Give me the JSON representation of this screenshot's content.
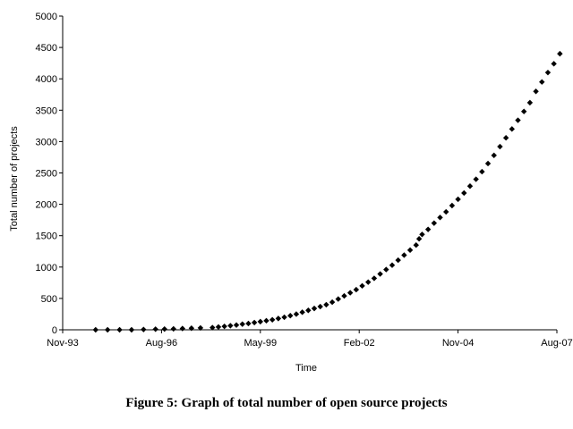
{
  "figure": {
    "caption": "Figure 5: Graph of total number of open source projects"
  },
  "chart_data": {
    "type": "scatter",
    "xlabel": "Time",
    "ylabel": "Total number of projects",
    "x_is_date": true,
    "xlim": [
      "1993-11",
      "2007-08"
    ],
    "ylim": [
      0,
      5000
    ],
    "xticks": [
      "Nov-93",
      "Aug-96",
      "May-99",
      "Feb-02",
      "Nov-04",
      "Aug-07"
    ],
    "yticks": [
      0,
      500,
      1000,
      1500,
      2000,
      2500,
      3000,
      3500,
      4000,
      4500,
      5000
    ],
    "grid": false,
    "legend": "none",
    "marker": "diamond",
    "marker_color": "#000000",
    "series": [
      {
        "points": [
          [
            "1994-10-01",
            0
          ],
          [
            "1995-02-01",
            0
          ],
          [
            "1995-06-01",
            0
          ],
          [
            "1995-10-01",
            0
          ],
          [
            "1996-02-01",
            5
          ],
          [
            "1996-06-01",
            10
          ],
          [
            "1996-09-01",
            12
          ],
          [
            "1996-12-01",
            15
          ],
          [
            "1997-03-01",
            20
          ],
          [
            "1997-06-01",
            25
          ],
          [
            "1997-09-01",
            30
          ],
          [
            "1998-01-01",
            35
          ],
          [
            "1998-03-01",
            45
          ],
          [
            "1998-05-01",
            55
          ],
          [
            "1998-07-01",
            65
          ],
          [
            "1998-09-01",
            75
          ],
          [
            "1998-11-01",
            90
          ],
          [
            "1999-01-01",
            100
          ],
          [
            "1999-03-01",
            115
          ],
          [
            "1999-05-01",
            130
          ],
          [
            "1999-07-01",
            145
          ],
          [
            "1999-09-01",
            160
          ],
          [
            "1999-11-01",
            180
          ],
          [
            "2000-01-01",
            200
          ],
          [
            "2000-03-01",
            225
          ],
          [
            "2000-05-01",
            250
          ],
          [
            "2000-07-01",
            280
          ],
          [
            "2000-09-01",
            310
          ],
          [
            "2000-11-01",
            340
          ],
          [
            "2001-01-01",
            370
          ],
          [
            "2001-03-01",
            400
          ],
          [
            "2001-05-01",
            440
          ],
          [
            "2001-07-01",
            490
          ],
          [
            "2001-09-01",
            540
          ],
          [
            "2001-11-01",
            590
          ],
          [
            "2002-01-01",
            640
          ],
          [
            "2002-03-01",
            700
          ],
          [
            "2002-05-01",
            760
          ],
          [
            "2002-07-01",
            820
          ],
          [
            "2002-09-01",
            890
          ],
          [
            "2002-11-01",
            960
          ],
          [
            "2003-01-01",
            1030
          ],
          [
            "2003-03-01",
            1110
          ],
          [
            "2003-05-01",
            1190
          ],
          [
            "2003-07-01",
            1270
          ],
          [
            "2003-09-01",
            1350
          ],
          [
            "2003-10-01",
            1450
          ],
          [
            "2003-11-01",
            1520
          ],
          [
            "2004-01-01",
            1600
          ],
          [
            "2004-03-01",
            1700
          ],
          [
            "2004-05-01",
            1790
          ],
          [
            "2004-07-01",
            1880
          ],
          [
            "2004-09-01",
            1980
          ],
          [
            "2004-11-01",
            2080
          ],
          [
            "2005-01-01",
            2180
          ],
          [
            "2005-03-01",
            2290
          ],
          [
            "2005-05-01",
            2400
          ],
          [
            "2005-07-01",
            2520
          ],
          [
            "2005-09-01",
            2650
          ],
          [
            "2005-11-01",
            2780
          ],
          [
            "2006-01-01",
            2920
          ],
          [
            "2006-03-01",
            3060
          ],
          [
            "2006-05-01",
            3200
          ],
          [
            "2006-07-01",
            3340
          ],
          [
            "2006-09-01",
            3480
          ],
          [
            "2006-11-01",
            3620
          ],
          [
            "2007-01-01",
            3800
          ],
          [
            "2007-03-01",
            3950
          ],
          [
            "2007-05-01",
            4100
          ],
          [
            "2007-07-01",
            4240
          ],
          [
            "2007-09-01",
            4400
          ]
        ]
      }
    ]
  }
}
